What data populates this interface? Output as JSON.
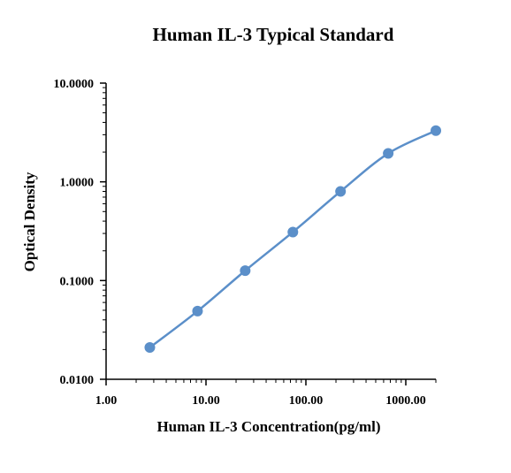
{
  "chart_data": {
    "type": "line",
    "title": "Human IL-3 Typical Standard",
    "xlabel": "Human IL-3 Concentration(pg/ml)",
    "ylabel": "Optical Density",
    "x_scale": "log",
    "y_scale": "log",
    "xlim": [
      1,
      2000
    ],
    "ylim": [
      0.01,
      10
    ],
    "x_ticks": [
      {
        "value": 1,
        "label": "1.00"
      },
      {
        "value": 10,
        "label": "10.00"
      },
      {
        "value": 100,
        "label": "100.00"
      },
      {
        "value": 1000,
        "label": "1000.00"
      }
    ],
    "y_ticks": [
      {
        "value": 0.01,
        "label": "0.0100"
      },
      {
        "value": 0.1,
        "label": "0.1000"
      },
      {
        "value": 1,
        "label": "1.0000"
      },
      {
        "value": 10,
        "label": "10.0000"
      }
    ],
    "grid": false,
    "legend": "none",
    "series": [
      {
        "color": "#5B8FC9",
        "marker_color": "#5B8FC9",
        "x": [
          2.74,
          8.23,
          24.69,
          74.07,
          222.2,
          666.7,
          2000
        ],
        "y": [
          0.021,
          0.049,
          0.126,
          0.31,
          0.8,
          1.94,
          3.3
        ]
      }
    ]
  }
}
